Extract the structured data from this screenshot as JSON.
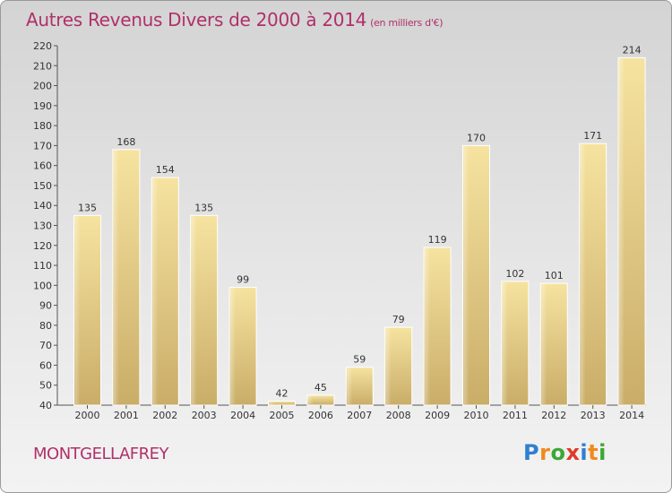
{
  "chart_data": {
    "type": "bar",
    "title": "Autres Revenus Divers de 2000 à 2014",
    "unit": "(en milliers d'€)",
    "categories": [
      "2000",
      "2001",
      "2002",
      "2003",
      "2004",
      "2005",
      "2006",
      "2007",
      "2008",
      "2009",
      "2010",
      "2011",
      "2012",
      "2013",
      "2014"
    ],
    "values": [
      135,
      168,
      154,
      135,
      99,
      42,
      45,
      59,
      79,
      119,
      170,
      102,
      101,
      171,
      214
    ],
    "ylim": [
      40,
      220
    ],
    "ytick_step": 10,
    "grid": false
  },
  "commune": "MONTGELLAFREY",
  "logo": {
    "letters": [
      "P",
      "r",
      "o",
      "x",
      "i",
      "t",
      "i"
    ],
    "colors": [
      "#2f7fd0",
      "#f08a1c",
      "#3aa835",
      "#e03a2a",
      "#2f7fd0",
      "#f08a1c",
      "#3aa835"
    ]
  },
  "colors": {
    "title": "#b0306a",
    "bar_light": "#f6e3a0",
    "bar_dark": "#c9ad68"
  }
}
